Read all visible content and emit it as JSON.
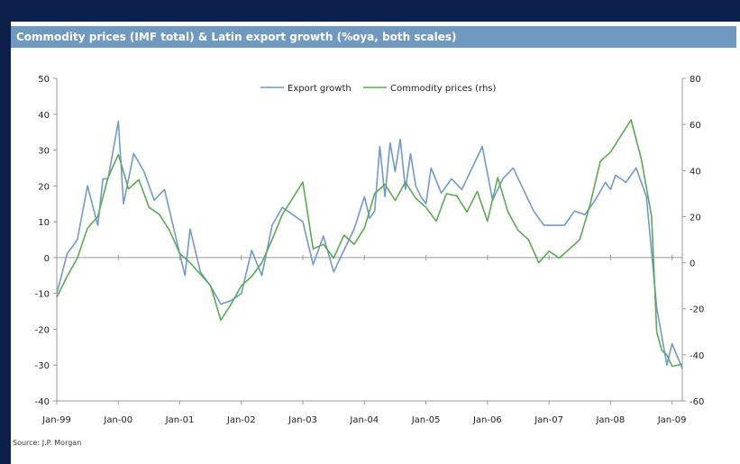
{
  "title": "Commodity prices (IMF total) & Latin export growth (%oya, both scales)",
  "source": "Source: J.P. Morgan",
  "colors": {
    "background": "#0b1f4a",
    "title_bar": "#6f99c1",
    "export": "#7099d4",
    "commodity": "#5aab4e"
  },
  "chart_data": {
    "type": "line",
    "title": "Commodity prices (IMF total) & Latin export growth (%oya, both scales)",
    "x_tick_labels": [
      "Jan-99",
      "Jan-00",
      "Jan-01",
      "Jan-02",
      "Jan-03",
      "Jan-04",
      "Jan-05",
      "Jan-06",
      "Jan-07",
      "Jan-08",
      "Jan-09"
    ],
    "x_range": [
      "1999-01",
      "2009-03"
    ],
    "y_left": {
      "ticks": [
        50,
        40,
        30,
        20,
        10,
        0,
        -10,
        -20,
        -30,
        -40
      ],
      "range": [
        -40,
        50
      ]
    },
    "y_right": {
      "ticks": [
        80,
        60,
        40,
        20,
        0,
        -20,
        -40,
        -60
      ],
      "range": [
        -60,
        80
      ]
    },
    "zero_line": true,
    "legend_placement": "top-center",
    "series": [
      {
        "name": "Export growth",
        "axis": "left",
        "x": [
          "1999-01",
          "1999-03",
          "1999-05",
          "1999-07",
          "1999-09",
          "1999-10",
          "1999-11",
          "2000-01",
          "2000-02",
          "2000-04",
          "2000-06",
          "2000-08",
          "2000-10",
          "2000-12",
          "2001-02",
          "2001-03",
          "2001-05",
          "2001-07",
          "2001-09",
          "2001-11",
          "2002-01",
          "2002-03",
          "2002-05",
          "2002-07",
          "2002-09",
          "2002-11",
          "2003-01",
          "2003-03",
          "2003-05",
          "2003-07",
          "2003-09",
          "2003-11",
          "2004-01",
          "2004-02",
          "2004-03",
          "2004-04",
          "2004-05",
          "2004-06",
          "2004-07",
          "2004-08",
          "2004-09",
          "2004-10",
          "2004-11",
          "2004-12",
          "2005-01",
          "2005-02",
          "2005-04",
          "2005-06",
          "2005-08",
          "2005-10",
          "2005-12",
          "2006-02",
          "2006-04",
          "2006-06",
          "2006-08",
          "2006-10",
          "2006-12",
          "2007-02",
          "2007-04",
          "2007-06",
          "2007-08",
          "2007-10",
          "2007-12",
          "2008-01",
          "2008-02",
          "2008-04",
          "2008-06",
          "2008-08",
          "2008-10",
          "2008-12",
          "2009-01",
          "2009-03"
        ],
        "values": [
          -10,
          1,
          5,
          20,
          9,
          22,
          22,
          38,
          15,
          29,
          24,
          16,
          19,
          7,
          -5,
          8,
          -4,
          -8,
          -13,
          -12,
          -10,
          2,
          -5,
          9,
          14,
          12,
          10,
          -2,
          6,
          -4,
          2,
          8,
          17,
          11,
          13,
          31,
          17,
          32,
          24,
          33,
          19,
          29,
          20,
          17,
          15,
          25,
          18,
          22,
          19,
          25,
          31,
          16,
          22,
          25,
          19,
          13,
          9,
          9,
          9,
          13,
          12,
          16,
          21,
          19,
          23,
          21,
          25,
          17,
          -14,
          -30,
          -24,
          -31
        ]
      },
      {
        "name": "Commodity prices (rhs)",
        "axis": "right",
        "x": [
          "1999-01",
          "1999-03",
          "1999-05",
          "1999-07",
          "1999-09",
          "1999-11",
          "2000-01",
          "2000-03",
          "2000-05",
          "2000-07",
          "2000-09",
          "2000-11",
          "2001-01",
          "2001-03",
          "2001-05",
          "2001-07",
          "2001-09",
          "2001-11",
          "2002-01",
          "2002-03",
          "2002-05",
          "2002-07",
          "2002-09",
          "2002-11",
          "2003-01",
          "2003-03",
          "2003-05",
          "2003-07",
          "2003-09",
          "2003-11",
          "2004-01",
          "2004-03",
          "2004-05",
          "2004-07",
          "2004-09",
          "2004-11",
          "2005-01",
          "2005-03",
          "2005-05",
          "2005-07",
          "2005-09",
          "2005-11",
          "2006-01",
          "2006-03",
          "2006-05",
          "2006-07",
          "2006-09",
          "2006-11",
          "2007-01",
          "2007-03",
          "2007-05",
          "2007-07",
          "2007-09",
          "2007-11",
          "2008-01",
          "2008-03",
          "2008-05",
          "2008-07",
          "2008-09",
          "2008-10",
          "2008-11",
          "2008-12",
          "2009-01",
          "2009-03"
        ],
        "values": [
          -15,
          -6,
          2,
          15,
          20,
          37,
          47,
          32,
          36,
          24,
          21,
          14,
          4,
          0,
          -5,
          -10,
          -25,
          -18,
          -10,
          -6,
          0,
          10,
          21,
          28,
          35,
          6,
          8,
          2,
          12,
          8,
          15,
          30,
          34,
          27,
          35,
          28,
          24,
          18,
          30,
          29,
          22,
          31,
          18,
          37,
          22,
          14,
          10,
          0,
          5,
          2,
          6,
          10,
          25,
          44,
          48,
          55,
          62,
          45,
          20,
          -30,
          -38,
          -40,
          -45,
          -44
        ]
      }
    ]
  }
}
